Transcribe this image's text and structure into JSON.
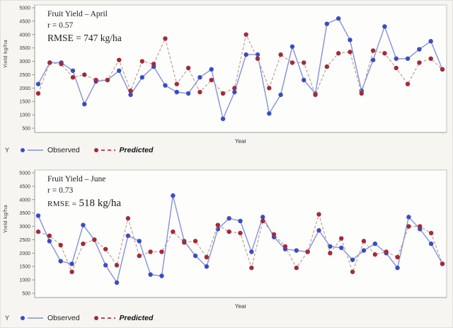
{
  "page": {
    "background": "#f6f5f2"
  },
  "colors": {
    "observed_marker": "#3b4cc0",
    "observed_line": "#8590d8",
    "predicted_marker": "#a32b38",
    "predicted_line": "#b49a8c",
    "frame": "#c4c2bd",
    "axis": "#9a9a96",
    "plot_bg": "#fdfdfc"
  },
  "charts": [
    {
      "title": "Fruit Yield – April",
      "r_label": "r = 0.57",
      "rmse_prefix": "RMSE = ",
      "rmse_value": "747 kg/ha",
      "xlabel": "Year",
      "ylabel": "Yield kg/ha",
      "legend": {
        "axis_letter": "Y",
        "observed_label": "Observed",
        "predicted_label": "Predicted"
      }
    },
    {
      "title": "Fruit Yield – June",
      "r_label": "r = 0.73",
      "rmse_prefix": "RMSE = ",
      "rmse_value": "518 kg/ha",
      "xlabel": "Year",
      "ylabel": "Yield kg/ha",
      "legend": {
        "axis_letter": "Y",
        "observed_label": "Observed",
        "predicted_label": "Predicted"
      }
    }
  ],
  "chart_data": [
    {
      "type": "line",
      "title": "Fruit Yield – April",
      "annotations": [
        "r = 0.57",
        "RMSE = 747 kg/ha"
      ],
      "xlabel": "Year",
      "ylabel": "Yield kg/ha",
      "x_note": "year index 1–36, x tick labels not shown",
      "ylim": [
        500,
        5000
      ],
      "ytick_step": 500,
      "grid": false,
      "legend_position": "bottom-left",
      "series": [
        {
          "name": "Observed",
          "marker_color": "#3b4cc0",
          "line_color": "#8590d8",
          "line_style": "solid",
          "values": [
            2150,
            2950,
            2950,
            2650,
            1400,
            2250,
            2300,
            2650,
            1750,
            2400,
            2800,
            2100,
            1850,
            1800,
            2400,
            2700,
            850,
            1850,
            3250,
            3250,
            1050,
            1750,
            3550,
            2300,
            1800,
            4400,
            4600,
            3800,
            1900,
            3050,
            4300,
            3100,
            3100,
            3450,
            3750,
            2700
          ]
        },
        {
          "name": "Predicted",
          "marker_color": "#a32b38",
          "line_color": "#b49a8c",
          "line_style": "dashed",
          "values": [
            1800,
            2950,
            2900,
            2400,
            2500,
            2300,
            2300,
            3050,
            1900,
            3000,
            2900,
            3850,
            2150,
            2750,
            1850,
            2300,
            1800,
            2000,
            4000,
            3100,
            2000,
            3250,
            2950,
            2950,
            1750,
            2800,
            3300,
            3350,
            1800,
            3400,
            3300,
            2750,
            2150,
            2950,
            3100,
            2700
          ]
        }
      ]
    },
    {
      "type": "line",
      "title": "Fruit Yield – June",
      "annotations": [
        "r = 0.73",
        "RMSE = 518 kg/ha"
      ],
      "xlabel": "Year",
      "ylabel": "Yield kg/ha",
      "x_note": "year index 1–37, x tick labels not shown",
      "ylim": [
        500,
        5000
      ],
      "ytick_step": 500,
      "grid": false,
      "legend_position": "bottom-left",
      "series": [
        {
          "name": "Observed",
          "marker_color": "#3b4cc0",
          "line_color": "#8590d8",
          "line_style": "solid",
          "values": [
            3400,
            2450,
            1700,
            1600,
            3050,
            2500,
            1550,
            900,
            2650,
            2450,
            1200,
            1150,
            4150,
            2450,
            1900,
            1500,
            2900,
            3300,
            3200,
            2050,
            3350,
            2600,
            2150,
            2100,
            2050,
            2850,
            2250,
            2200,
            1750,
            2100,
            2350,
            2000,
            1450,
            3350,
            2900,
            2350,
            1600
          ]
        },
        {
          "name": "Predicted",
          "marker_color": "#a32b38",
          "line_color": "#b49a8c",
          "line_style": "dashed",
          "values": [
            2800,
            2650,
            2300,
            1300,
            2350,
            2500,
            2150,
            1550,
            3300,
            1900,
            2050,
            2050,
            2800,
            2400,
            2450,
            1850,
            3050,
            2800,
            2750,
            1450,
            3200,
            2700,
            2250,
            1450,
            2050,
            3450,
            2000,
            2550,
            1300,
            2450,
            1950,
            2050,
            1850,
            3000,
            3000,
            2750,
            1600
          ]
        }
      ]
    }
  ]
}
